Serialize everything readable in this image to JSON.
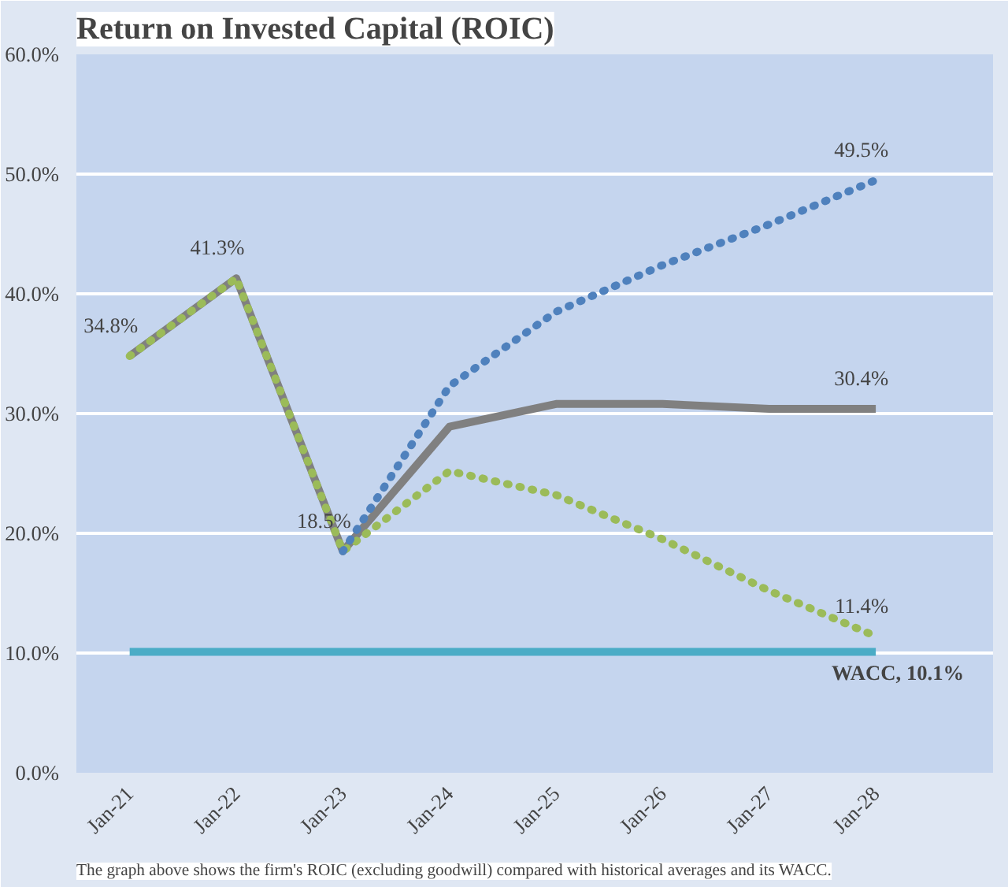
{
  "chart_data": {
    "type": "line",
    "title": "Return on Invested Capital (ROIC)",
    "categories": [
      "Jan-21",
      "Jan-22",
      "Jan-23",
      "Jan-24",
      "Jan-25",
      "Jan-26",
      "Jan-27",
      "Jan-28"
    ],
    "series": [
      {
        "color": "#4bacc6",
        "line_style": "solid",
        "values": [
          10.1,
          10.1,
          10.1,
          10.1,
          10.1,
          10.1,
          10.1,
          10.1
        ]
      },
      {
        "color": "#808080",
        "line_style": "solid",
        "values": [
          34.8,
          41.3,
          18.5,
          28.9,
          30.8,
          30.8,
          30.4,
          30.4
        ],
        "value_labels": [
          "34.8%",
          "41.3%",
          "18.5%",
          null,
          null,
          null,
          null,
          "30.4%"
        ]
      },
      {
        "color": "#9bbb59",
        "line_style": "dotted",
        "values": [
          34.8,
          41.3,
          18.5,
          25.2,
          23.2,
          19.5,
          15.2,
          11.4
        ],
        "value_labels": [
          null,
          null,
          null,
          null,
          null,
          null,
          null,
          "11.4%"
        ]
      },
      {
        "color": "#4f81bd",
        "line_style": "dotted",
        "values": [
          null,
          null,
          18.5,
          32.3,
          38.5,
          42.4,
          45.8,
          49.5
        ],
        "value_labels": [
          null,
          null,
          null,
          null,
          null,
          null,
          null,
          "49.5%"
        ]
      }
    ],
    "ylim": [
      0,
      60
    ],
    "yticks": [
      {
        "value": 0,
        "label": "0.0%"
      },
      {
        "value": 10,
        "label": "10.0%"
      },
      {
        "value": 20,
        "label": "20.0%"
      },
      {
        "value": 30,
        "label": "30.0%"
      },
      {
        "value": 40,
        "label": "40.0%"
      },
      {
        "value": 50,
        "label": "50.0%"
      },
      {
        "value": 60,
        "label": "60.0%"
      }
    ],
    "grid": "y",
    "marker": "none",
    "annotations": [
      {
        "text": "WACC, 10.1%",
        "x": "Jan-28",
        "y": 10.1
      },
      "The graph above shows the firm's ROIC (excluding goodwill) compared with historical averages and its WACC."
    ]
  }
}
